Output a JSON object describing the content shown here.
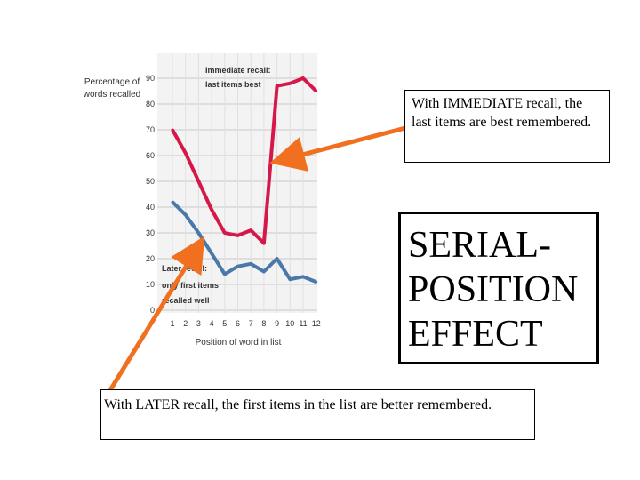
{
  "chart_data": {
    "type": "line",
    "ylabel_lines": [
      "Percentage of",
      "words recalled"
    ],
    "xlabel": "Position of word in list",
    "y_ticks": [
      "0",
      "10",
      "20",
      "30",
      "40",
      "50",
      "60",
      "70",
      "80",
      "90"
    ],
    "x_ticks": [
      "1",
      "2",
      "3",
      "4",
      "5",
      "6",
      "7",
      "8",
      "9",
      "10",
      "11",
      "12"
    ],
    "ylim": [
      0,
      90
    ],
    "grid": true,
    "series": [
      {
        "name": "Immediate recall: last items best",
        "label_lines": [
          "Immediate recall:",
          "last items best"
        ],
        "color": "#d6174a",
        "x": [
          1,
          2,
          3,
          4,
          5,
          6,
          7,
          8,
          9,
          10,
          11,
          12
        ],
        "values": [
          70,
          61,
          50,
          39,
          30,
          29,
          31,
          26,
          87,
          88,
          90,
          85
        ]
      },
      {
        "name": "Later recall: only first items recalled well",
        "label_lines": [
          "Later recall:",
          "only first items",
          "recalled well"
        ],
        "color": "#4a78a8",
        "x": [
          1,
          2,
          3,
          4,
          5,
          6,
          7,
          8,
          9,
          10,
          11,
          12
        ],
        "values": [
          42,
          37,
          30,
          22,
          14,
          17,
          18,
          15,
          20,
          12,
          13,
          11
        ]
      }
    ]
  },
  "callouts": {
    "immediate": "With IMMEDIATE recall, the last items are best remembered.",
    "later": "With LATER recall, the first items in the list are better remembered.",
    "title_lines": [
      "SERIAL-",
      "POSITION",
      "EFFECT"
    ]
  },
  "colors": {
    "arrow": "#f07020"
  }
}
